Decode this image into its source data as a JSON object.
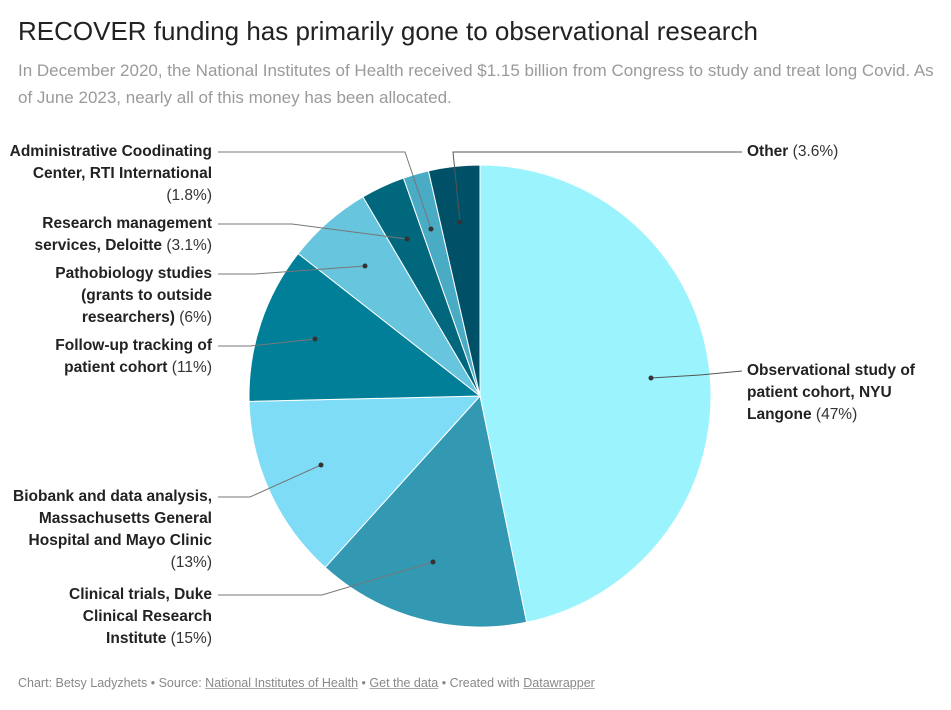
{
  "title": "RECOVER funding has primarily gone to observational research",
  "subtitle": "In December 2020, the National Institutes of Health received $1.15 billion from Congress to study and treat long Covid. As of June 2023, nearly all of this money has been allocated.",
  "chart_data": {
    "type": "pie",
    "slices": [
      {
        "label": "Observational study of patient cohort, NYU Langone",
        "pct_label": "(47%)",
        "value": 47,
        "color": "#9af3fd"
      },
      {
        "label": "Clinical trials, Duke Clinical Research Institute",
        "pct_label": "(15%)",
        "value": 15,
        "color": "#3398b2"
      },
      {
        "label": "Biobank and data analysis, Massachusetts General Hospital and Mayo Clinic",
        "pct_label": "(13%)",
        "value": 13,
        "color": "#7fdcf6"
      },
      {
        "label": "Follow-up tracking of patient cohort",
        "pct_label": "(11%)",
        "value": 11,
        "color": "#017f98"
      },
      {
        "label": "Pathobiology studies (grants to outside researchers)",
        "pct_label": "(6%)",
        "value": 6,
        "color": "#67c5dd"
      },
      {
        "label": "Research management services, Deloitte",
        "pct_label": "(3.1%)",
        "value": 3.1,
        "color": "#00677d"
      },
      {
        "label": "Administrative Coodinating Center, RTI International",
        "pct_label": "(1.8%)",
        "value": 1.8,
        "color": "#4aabc4"
      },
      {
        "label": "Other",
        "pct_label": "(3.6%)",
        "value": 3.6,
        "color": "#005168"
      }
    ]
  },
  "footer": {
    "chart_by": "Chart: Betsy Ladyzhets",
    "sep": "•",
    "source_label": "Source:",
    "source": "National Institutes of Health",
    "get_data": "Get the data",
    "created": "Created with",
    "tool": "Datawrapper"
  }
}
